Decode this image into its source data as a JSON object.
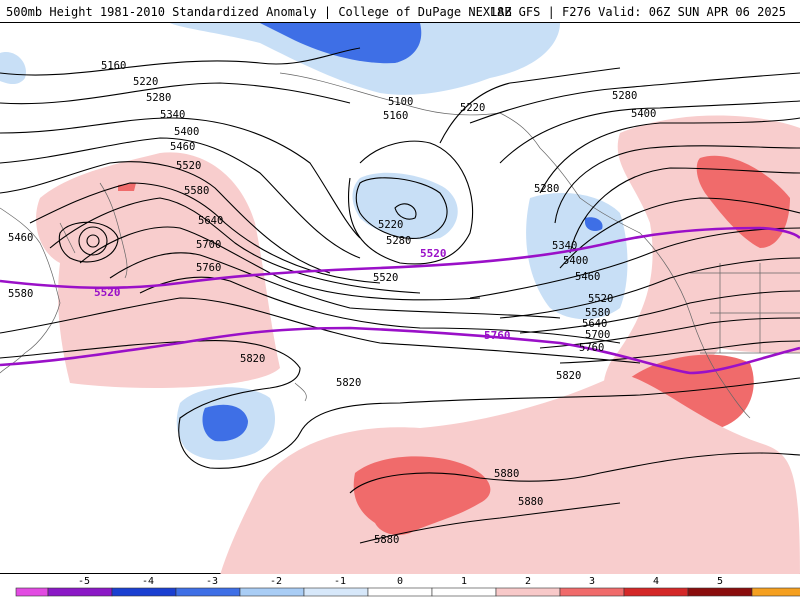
{
  "header": {
    "title": "500mb Height 1981-2010 Standardized Anomaly | College of DuPage NEXLAB",
    "run_info": "18Z GFS | F276 Valid: 06Z SUN APR 06 2025"
  },
  "contour_labels": {
    "h5160": "5160",
    "h5220_w": "5220",
    "h5280_w": "5280",
    "h5340_w": "5340",
    "h5400_w": "5400",
    "h5460_w": "5460",
    "h5520_w": "5520",
    "h5580_w": "5580",
    "h5640_w": "5640",
    "h5700_w": "5700",
    "h5760_w": "5760",
    "h5460_low": "5460",
    "h5580_edge": "5580",
    "h5100_n": "5100",
    "h5160_n": "5160",
    "h5220_n": "5220",
    "h5280_ne": "5280",
    "h5400_ne": "5400",
    "h5220_c": "5220",
    "h5280_c": "5280",
    "h5520_c": "5520",
    "h5280_e": "5280",
    "h5340_e": "5340",
    "h5400_e": "5400",
    "h5460_e": "5460",
    "h5520_e": "5520",
    "h5580_e": "5580",
    "h5640_e": "5640",
    "h5700_e": "5700",
    "h5760_e": "5760",
    "h5820_w": "5820",
    "h5820_c": "5820",
    "h5820_e": "5820",
    "h5880_e": "5880",
    "h5880_c": "5880",
    "h5880_s": "5880",
    "p5520_w": "5520",
    "p5520_c": "5520",
    "p5760_c": "5760"
  },
  "colorbar": {
    "ticks": [
      "-5",
      "-4",
      "-3",
      "-2",
      "-1",
      "0",
      "1",
      "2",
      "3",
      "4",
      "5"
    ],
    "colors": [
      "#e24be2",
      "#8b18c6",
      "#1a3fd1",
      "#3e6fe6",
      "#a9cdf5",
      "#d7e8fa",
      "#ffffff",
      "#ffffff",
      "#f8c9c9",
      "#f06b6b",
      "#d42828",
      "#8a0d0d",
      "#f5a020",
      "#f5c24a"
    ]
  },
  "colors": {
    "neg_light": "#c8dff6",
    "neg_mid": "#3e6fe6",
    "pos_light": "#f8cdcd",
    "pos_mid": "#f06b6b",
    "special_contour": "#9a10c8"
  }
}
